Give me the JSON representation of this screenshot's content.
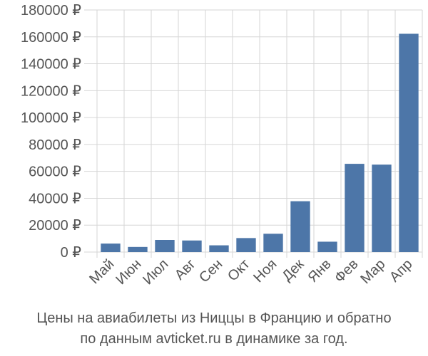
{
  "chart_data": {
    "type": "bar",
    "categories": [
      "Май",
      "Июн",
      "Июл",
      "Авг",
      "Сен",
      "Окт",
      "Ноя",
      "Дек",
      "Янв",
      "Фев",
      "Мар",
      "Апр"
    ],
    "values": [
      6300,
      3800,
      9000,
      8600,
      5000,
      10400,
      13600,
      37800,
      7700,
      65600,
      65000,
      162300
    ],
    "ylim": [
      0,
      180000
    ],
    "yticks": [
      0,
      20000,
      40000,
      60000,
      80000,
      100000,
      120000,
      140000,
      160000,
      180000
    ],
    "ytick_labels": [
      "0 ₽",
      "20000 ₽",
      "40000 ₽",
      "60000 ₽",
      "80000 ₽",
      "100000 ₽",
      "120000 ₽",
      "140000 ₽",
      "160000 ₽",
      "180000 ₽"
    ],
    "grid": true,
    "bar_color": "#4d76a8"
  },
  "caption": {
    "line1": "Цены на авиабилеты из Ниццы в Францию и обратно",
    "line2": "по данным avticket.ru в динамике за год."
  }
}
